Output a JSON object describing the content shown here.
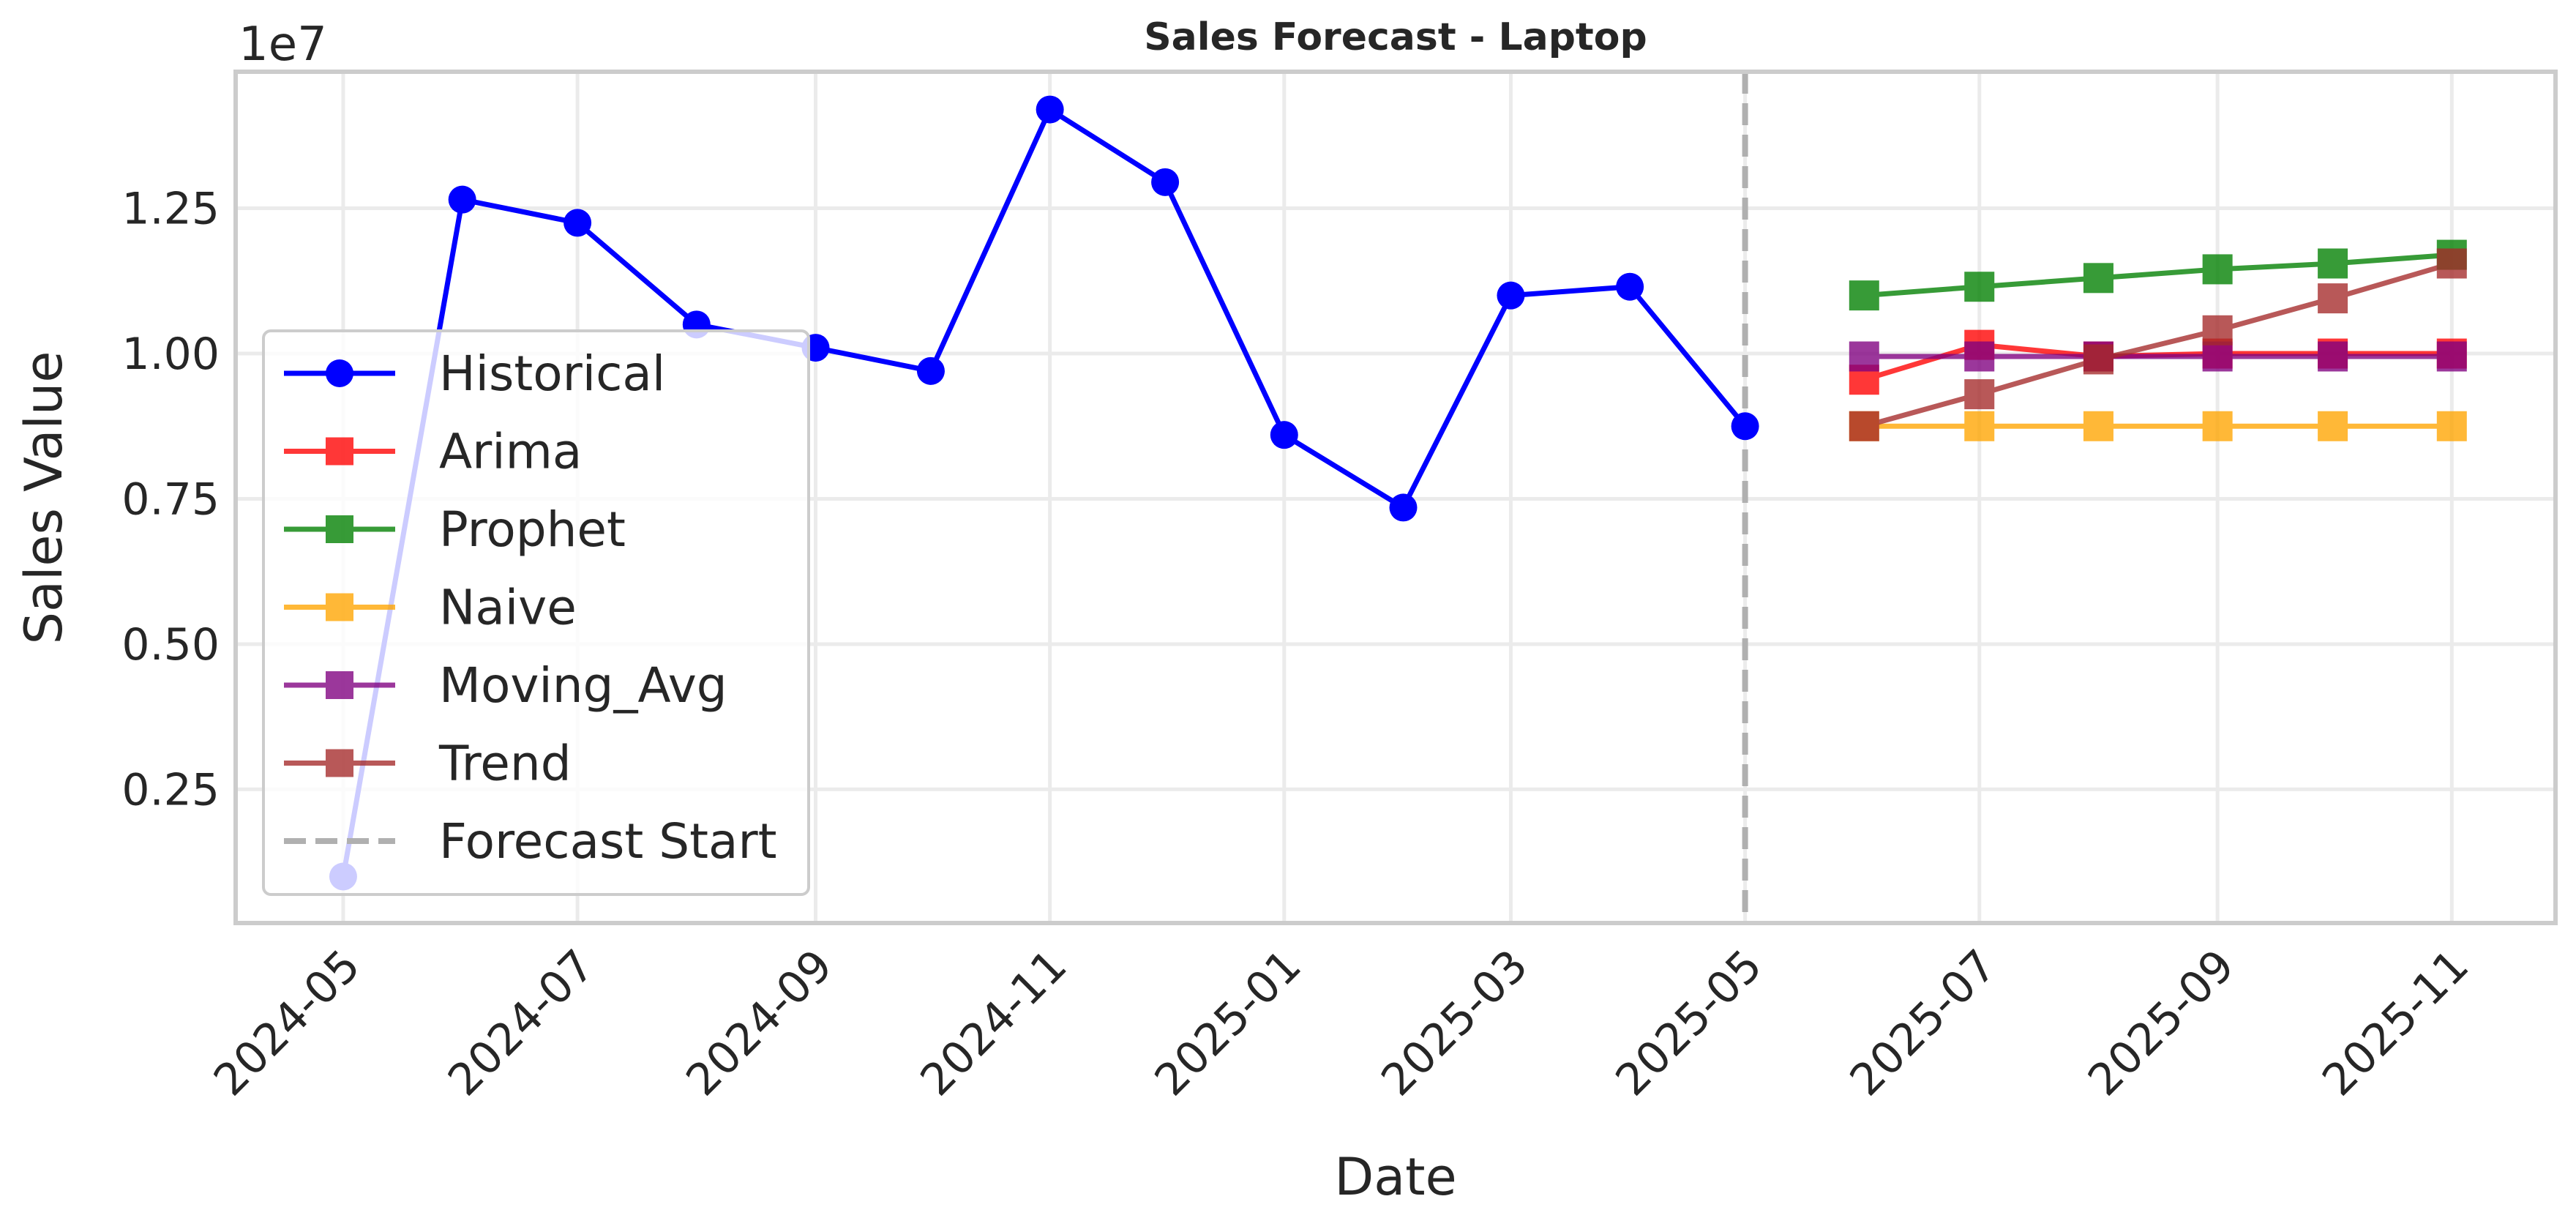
{
  "chart_data": {
    "type": "line",
    "title": "Sales Forecast - Laptop",
    "xlabel": "Date",
    "ylabel": "Sales Value",
    "y_multiplier_label": "1e7",
    "y_scale": 10000000,
    "ylim": [
      0.02,
      1.485
    ],
    "xlim": [
      "2024-04-03",
      "2025-11-28"
    ],
    "y_ticks": [
      0.25,
      0.5,
      0.75,
      1.0,
      1.25
    ],
    "y_tick_labels": [
      "0.25",
      "0.50",
      "0.75",
      "1.00",
      "1.25"
    ],
    "x_ticks": [
      "2024-05-01",
      "2024-07-01",
      "2024-09-01",
      "2024-11-01",
      "2025-01-01",
      "2025-03-01",
      "2025-05-01",
      "2025-07-01",
      "2025-09-01",
      "2025-11-01"
    ],
    "x_tick_labels": [
      "2024-05",
      "2024-07",
      "2024-09",
      "2024-11",
      "2025-01",
      "2025-03",
      "2025-05",
      "2025-07",
      "2025-09",
      "2025-11"
    ],
    "grid": true,
    "legend_position": "center-left",
    "forecast_start": {
      "name": "Forecast Start",
      "x": "2025-05-01",
      "color": "#b0b0b0"
    },
    "series": [
      {
        "name": "Historical",
        "marker": "circle",
        "color": "#0000ff",
        "alpha": 1.0,
        "x": [
          "2024-05-01",
          "2024-06-01",
          "2024-07-01",
          "2024-08-01",
          "2024-09-01",
          "2024-10-01",
          "2024-11-01",
          "2024-12-01",
          "2025-01-01",
          "2025-02-01",
          "2025-03-01",
          "2025-04-01",
          "2025-05-01"
        ],
        "values": [
          0.1,
          1.265,
          1.225,
          1.05,
          1.01,
          0.97,
          1.42,
          1.295,
          0.86,
          0.735,
          1.1,
          1.115,
          0.875
        ]
      },
      {
        "name": "Arima",
        "marker": "square",
        "color": "#ff0000",
        "alpha": 0.78,
        "x": [
          "2025-06-01",
          "2025-07-01",
          "2025-08-01",
          "2025-09-01",
          "2025-10-01",
          "2025-11-01"
        ],
        "values": [
          0.955,
          1.015,
          0.995,
          1.0,
          1.0,
          1.0
        ]
      },
      {
        "name": "Prophet",
        "marker": "square",
        "color": "#008000",
        "alpha": 0.78,
        "x": [
          "2025-06-01",
          "2025-07-01",
          "2025-08-01",
          "2025-09-01",
          "2025-10-01",
          "2025-11-01"
        ],
        "values": [
          1.1,
          1.115,
          1.13,
          1.145,
          1.155,
          1.17
        ]
      },
      {
        "name": "Naive",
        "marker": "square",
        "color": "#ffa500",
        "alpha": 0.78,
        "x": [
          "2025-06-01",
          "2025-07-01",
          "2025-08-01",
          "2025-09-01",
          "2025-10-01",
          "2025-11-01"
        ],
        "values": [
          0.875,
          0.875,
          0.875,
          0.875,
          0.875,
          0.875
        ]
      },
      {
        "name": "Moving_Avg",
        "marker": "square",
        "color": "#800080",
        "alpha": 0.78,
        "x": [
          "2025-06-01",
          "2025-07-01",
          "2025-08-01",
          "2025-09-01",
          "2025-10-01",
          "2025-11-01"
        ],
        "values": [
          0.995,
          0.995,
          0.995,
          0.995,
          0.995,
          0.995
        ]
      },
      {
        "name": "Trend",
        "marker": "square",
        "color": "#a52a2a",
        "alpha": 0.78,
        "x": [
          "2025-06-01",
          "2025-07-01",
          "2025-08-01",
          "2025-09-01",
          "2025-10-01",
          "2025-11-01"
        ],
        "values": [
          0.875,
          0.93,
          0.99,
          1.04,
          1.095,
          1.155
        ]
      }
    ]
  }
}
